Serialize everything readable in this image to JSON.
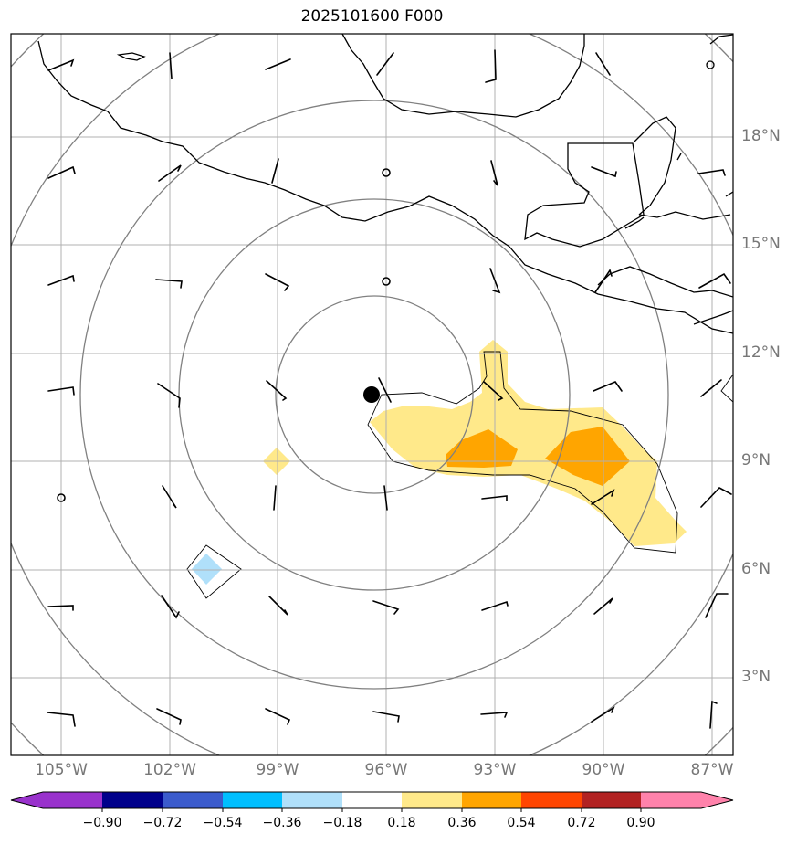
{
  "title": "2025101600 F000",
  "map": {
    "lat_labels": [
      "18°N",
      "15°N",
      "12°N",
      "9°N",
      "6°N",
      "3°N"
    ],
    "lon_labels": [
      "105°W",
      "102°W",
      "99°W",
      "96°W",
      "93°W",
      "90°W",
      "87°W"
    ],
    "center_marker": {
      "lat": 10.9,
      "lon": -96.4
    },
    "range_rings": 5,
    "gridlines": true
  },
  "colorbar": {
    "ticks": [
      "−0.90",
      "−0.72",
      "−0.54",
      "−0.36",
      "−0.18",
      "0.18",
      "0.36",
      "0.54",
      "0.72",
      "0.90"
    ],
    "colors": [
      "#9932cc",
      "#00008b",
      "#3b5bcc",
      "#00bfff",
      "#b0e0fa",
      "#ffffff",
      "#ffe98a",
      "#ffa500",
      "#ff4500",
      "#b22222",
      "#ff82ab"
    ],
    "extend": "both"
  },
  "colors": {
    "grid": "#b0b0b0",
    "rings": "#808080",
    "coast": "#000000",
    "label": "#777777"
  }
}
